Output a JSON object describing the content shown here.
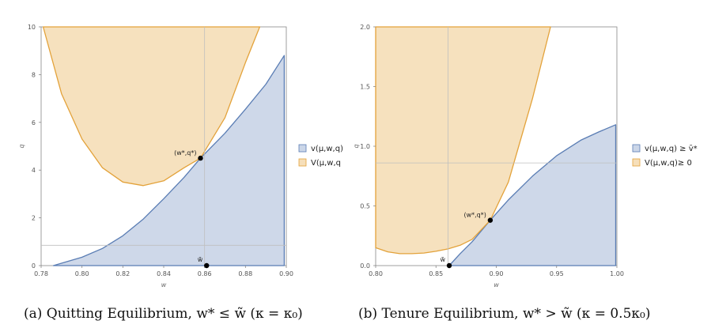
{
  "colors": {
    "blue_fill": "#cbd6e8",
    "blue_line": "#5a7db4",
    "orange_fill": "#f6dfba",
    "orange_line": "#e3a23a",
    "axis": "#888888",
    "refline": "#bfbfbf"
  },
  "captions": [
    "(a) Quitting Equilibrium, w* ≤ w̃ (κ = κ₀)",
    "(b) Tenure Equilibrium, w* > w̃ (κ = 0.5κ₀)"
  ],
  "chart_data": [
    {
      "type": "area",
      "xlabel": "w",
      "ylabel": "q",
      "xlim": [
        0.78,
        0.9
      ],
      "ylim": [
        0,
        10
      ],
      "xticks": [
        0.78,
        0.8,
        0.82,
        0.84,
        0.86,
        0.88,
        0.9
      ],
      "xtick_labels": [
        "0.78",
        "0.80",
        "0.82",
        "0.84",
        "0.86",
        "0.88",
        "0.90"
      ],
      "yticks": [
        0,
        2,
        4,
        6,
        8,
        10
      ],
      "ytick_labels": [
        "0",
        "2",
        "4",
        "6",
        "8",
        "10"
      ],
      "legend_position": "right",
      "series": [
        {
          "name": "v(μ,w,q)",
          "role": "blue",
          "x": [
            0.786,
            0.8,
            0.81,
            0.82,
            0.83,
            0.84,
            0.85,
            0.858,
            0.87,
            0.88,
            0.89,
            0.899,
            0.899,
            0.786
          ],
          "y": [
            0,
            0.35,
            0.72,
            1.25,
            1.95,
            2.8,
            3.7,
            4.5,
            5.55,
            6.55,
            7.6,
            8.8,
            0,
            0
          ]
        },
        {
          "name": "V(μ,w,q",
          "role": "orange",
          "x": [
            0.781,
            0.79,
            0.8,
            0.81,
            0.82,
            0.83,
            0.84,
            0.85,
            0.858,
            0.87,
            0.88,
            0.887,
            0.887,
            0.781
          ],
          "y": [
            10,
            7.2,
            5.3,
            4.1,
            3.5,
            3.35,
            3.55,
            4.1,
            4.5,
            6.2,
            8.5,
            10,
            10,
            10
          ]
        }
      ],
      "points": [
        {
          "label": "(w*,q*)",
          "x": 0.858,
          "y": 4.5
        },
        {
          "label": "w̃",
          "x": 0.861,
          "y": 0
        }
      ],
      "reference_lines": {
        "vertical_x": 0.86,
        "horizontal_y": 0.85
      }
    },
    {
      "type": "area",
      "xlabel": "w",
      "ylabel": "q",
      "xlim": [
        0.8,
        1.0
      ],
      "ylim": [
        0,
        2.0
      ],
      "xticks": [
        0.8,
        0.85,
        0.9,
        0.95,
        1.0
      ],
      "xtick_labels": [
        "0.80",
        "0.85",
        "0.90",
        "0.95",
        "1.00"
      ],
      "yticks": [
        0,
        0.5,
        1.0,
        1.5,
        2.0
      ],
      "ytick_labels": [
        "0.0",
        "0.5",
        "1.0",
        "1.5",
        "2.0"
      ],
      "legend_position": "right",
      "series": [
        {
          "name": "v(μ,w,q) ≥ v̄*",
          "role": "blue",
          "x": [
            0.861,
            0.87,
            0.88,
            0.895,
            0.91,
            0.93,
            0.95,
            0.97,
            0.985,
            0.999,
            0.999,
            0.861
          ],
          "y": [
            0,
            0.1,
            0.2,
            0.38,
            0.55,
            0.75,
            0.92,
            1.05,
            1.12,
            1.18,
            0,
            0
          ]
        },
        {
          "name": "V(μ,w,q)≥ 0",
          "role": "orange",
          "x": [
            0.8,
            0.81,
            0.82,
            0.83,
            0.84,
            0.85,
            0.86,
            0.87,
            0.88,
            0.895,
            0.91,
            0.93,
            0.945,
            0.945,
            0.8
          ],
          "y": [
            0.15,
            0.115,
            0.1,
            0.1,
            0.105,
            0.12,
            0.14,
            0.17,
            0.22,
            0.38,
            0.7,
            1.4,
            2.0,
            2.0,
            2.0
          ]
        }
      ],
      "points": [
        {
          "label": "(w*,q*)",
          "x": 0.895,
          "y": 0.38
        },
        {
          "label": "w̃",
          "x": 0.861,
          "y": 0
        }
      ],
      "reference_lines": {
        "vertical_x": 0.86,
        "horizontal_y": 0.86
      }
    }
  ]
}
